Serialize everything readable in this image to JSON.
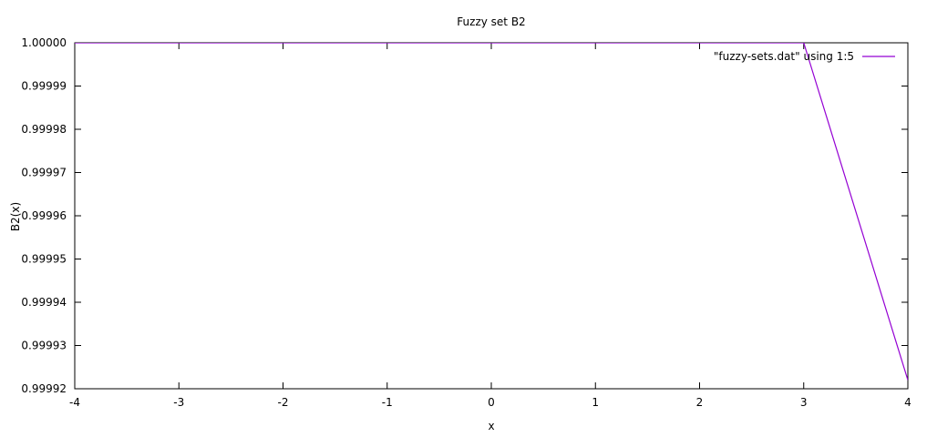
{
  "chart_data": {
    "type": "line",
    "title": "Fuzzy set B2",
    "xlabel": "x",
    "ylabel": "B2(x)",
    "xlim": [
      -4,
      4
    ],
    "ylim": [
      0.99992,
      1.0
    ],
    "x_ticks": [
      -4,
      -3,
      -2,
      -1,
      0,
      1,
      2,
      3,
      4
    ],
    "x_tick_labels": [
      "-4",
      "-3",
      "-2",
      "-1",
      "0",
      "1",
      "2",
      "3",
      "4"
    ],
    "y_ticks": [
      0.99992,
      0.99993,
      0.99994,
      0.99995,
      0.99996,
      0.99997,
      0.99998,
      0.99999,
      1.0
    ],
    "y_tick_labels": [
      "0.99992",
      "0.99993",
      "0.99994",
      "0.99995",
      "0.99996",
      "0.99997",
      "0.99998",
      "0.99999",
      "1.00000"
    ],
    "grid": false,
    "legend_position": "top-right",
    "series": [
      {
        "name": "\"fuzzy-sets.dat\" using 1:5",
        "color": "#9400d3",
        "x": [
          -4,
          -3,
          -2,
          -1,
          0,
          1,
          2,
          3,
          4
        ],
        "y": [
          1.0,
          1.0,
          1.0,
          1.0,
          1.0,
          1.0,
          1.0,
          1.0,
          0.999922
        ]
      }
    ]
  }
}
